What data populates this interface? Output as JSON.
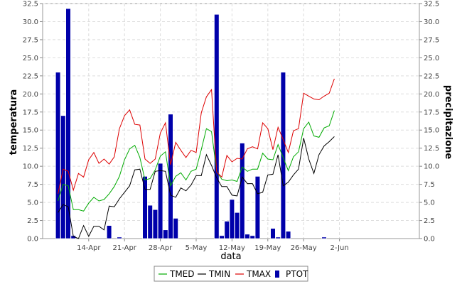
{
  "chart_data": {
    "type": "bar+line",
    "x_start": "2014-04-08",
    "x_ticks": [
      "14-Apr",
      "21-Apr",
      "28-Apr",
      "5-May",
      "12-May",
      "19-May",
      "26-May",
      "2-Jun"
    ],
    "xlabel": "data",
    "ylabel_left": "temperatura",
    "ylabel_right": "precipitazione",
    "ylim": [
      0,
      32.5
    ],
    "yticks": [
      "0.0",
      "2.5",
      "5.0",
      "7.5",
      "10.0",
      "12.5",
      "15.0",
      "17.5",
      "20.0",
      "22.5",
      "25.0",
      "27.5",
      "30.0",
      "32.5"
    ],
    "grid": true,
    "legend_position": "bottom",
    "series": [
      {
        "name": "TMED",
        "kind": "line",
        "color": "#00aa00",
        "values": [
          5.2,
          7.5,
          7.3,
          4.0,
          4.0,
          3.8,
          4.9,
          5.7,
          5.2,
          5.4,
          6.2,
          7.2,
          8.6,
          10.9,
          12.4,
          12.9,
          11.2,
          8.1,
          8.3,
          9.5,
          11.4,
          12.0,
          7.3,
          8.6,
          9.1,
          8.1,
          9.3,
          9.6,
          12.3,
          15.2,
          14.8,
          9.3,
          8.2,
          8.0,
          8.1,
          7.9,
          9.9,
          9.3,
          9.6,
          9.6,
          11.8,
          11.0,
          10.9,
          13.0,
          11.2,
          9.4,
          11.3,
          12.0,
          15.2,
          16.1,
          14.2,
          14.0,
          15.3,
          15.6,
          17.7
        ]
      },
      {
        "name": "TMIN",
        "kind": "line",
        "color": "#000000",
        "values": [
          3.6,
          4.7,
          4.4,
          0.3,
          0.0,
          1.8,
          0.3,
          1.7,
          1.7,
          1.2,
          4.5,
          4.4,
          5.5,
          6.4,
          7.3,
          9.5,
          9.6,
          6.8,
          6.8,
          9.3,
          9.4,
          9.3,
          6.0,
          5.7,
          7.0,
          6.6,
          7.4,
          8.7,
          8.7,
          11.6,
          10.1,
          8.4,
          7.2,
          7.2,
          6.0,
          5.9,
          8.5,
          7.6,
          7.6,
          6.2,
          6.4,
          8.8,
          8.9,
          11.6,
          7.3,
          7.8,
          8.8,
          9.6,
          13.9,
          11.0,
          9.0,
          11.6,
          12.8,
          13.4,
          14.1
        ]
      },
      {
        "name": "TMAX",
        "kind": "line",
        "color": "#dd0000",
        "values": [
          6.2,
          9.6,
          9.3,
          6.7,
          9.0,
          8.5,
          10.9,
          11.9,
          10.4,
          11.0,
          10.3,
          11.3,
          15.2,
          17.0,
          17.8,
          15.8,
          15.7,
          11.0,
          10.4,
          11.0,
          14.6,
          16.0,
          10.2,
          13.3,
          12.2,
          11.2,
          12.2,
          11.9,
          17.4,
          19.6,
          20.6,
          9.2,
          8.5,
          11.5,
          10.6,
          11.1,
          11.0,
          12.4,
          12.7,
          12.4,
          16.0,
          15.2,
          12.3,
          15.4,
          13.7,
          11.9,
          14.9,
          15.2,
          20.1,
          19.7,
          19.3,
          19.2,
          19.7,
          20.1,
          22.1
        ]
      },
      {
        "name": "PTOT",
        "kind": "bar",
        "color": "#0000aa",
        "values": [
          23.0,
          17.0,
          31.8,
          0.4,
          0,
          0,
          0,
          0,
          0,
          0,
          1.8,
          0,
          0.2,
          0,
          0,
          0,
          0,
          8.6,
          4.6,
          4.0,
          10.4,
          1.2,
          17.2,
          2.8,
          0,
          0,
          0,
          0,
          0,
          0,
          0,
          31.0,
          0.4,
          2.4,
          5.4,
          3.6,
          13.2,
          0.6,
          0.4,
          8.6,
          0,
          0,
          1.4,
          0.2,
          23.0,
          1.0,
          0,
          0,
          0,
          0,
          0,
          0,
          0.2,
          0,
          0
        ]
      }
    ]
  }
}
